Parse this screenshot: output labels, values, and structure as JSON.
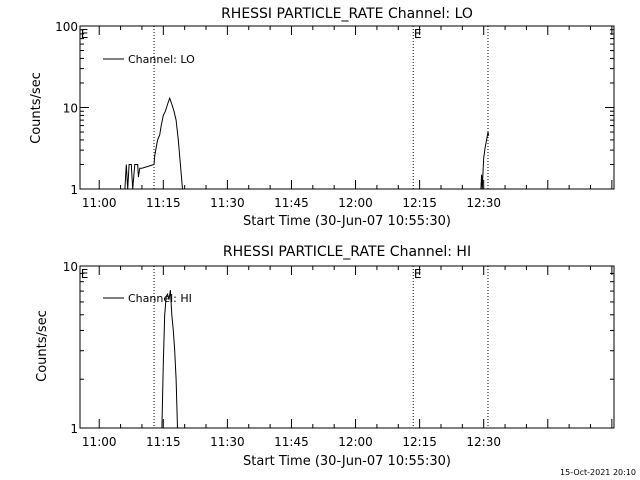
{
  "footer": {
    "timestamp": "15-Oct-2021 20:10"
  },
  "chart_data": [
    {
      "type": "line",
      "title": "RHESSI PARTICLE_RATE Channel: LO",
      "xlabel": "Start Time (30-Jun-07 10:55:30)",
      "ylabel": "Counts/sec",
      "yscale": "log",
      "ylim": [
        1,
        100
      ],
      "xlim": [
        "10:55:30",
        "13:00:30"
      ],
      "x_ticks": [
        "11:00",
        "11:15",
        "11:30",
        "11:45",
        "12:00",
        "12:15",
        "12:30"
      ],
      "y_ticks": [
        {
          "value": 1,
          "label": "1"
        },
        {
          "value": 10,
          "label": "10"
        },
        {
          "value": 100,
          "label": "100"
        }
      ],
      "event_lines": [
        {
          "time": "11:12:50",
          "label": "E"
        },
        {
          "time": "12:13:30",
          "label": ""
        },
        {
          "time": "12:31:00",
          "label": ""
        }
      ],
      "corner_labels": [
        {
          "time": "10:55:40",
          "label": "E"
        },
        {
          "time": "12:13:40",
          "label": "E"
        }
      ],
      "legend": {
        "position": "top-left",
        "entries": [
          "Channel: LO"
        ]
      },
      "series": [
        {
          "name": "Channel: LO",
          "segments": [
            [
              [
                "11:06:00",
                1
              ],
              [
                "11:06:20",
                2
              ],
              [
                "11:06:40",
                1
              ],
              [
                "11:07:00",
                2
              ],
              [
                "11:07:30",
                2
              ],
              [
                "11:07:50",
                1
              ],
              [
                "11:08:20",
                2
              ],
              [
                "11:09:00",
                2
              ],
              [
                "11:09:10",
                1.4
              ],
              [
                "11:09:30",
                1.8
              ],
              [
                "11:10:00",
                1.8
              ],
              [
                "11:12:50",
                2
              ],
              [
                "11:13:00",
                2.6
              ],
              [
                "11:13:40",
                4
              ],
              [
                "11:14:10",
                4.6
              ],
              [
                "11:14:30",
                6
              ],
              [
                "11:15:00",
                8
              ],
              [
                "11:15:30",
                9
              ],
              [
                "11:16:00",
                11
              ],
              [
                "11:16:30",
                13
              ],
              [
                "11:17:00",
                11
              ],
              [
                "11:17:30",
                9
              ],
              [
                "11:18:00",
                7
              ],
              [
                "11:18:30",
                4
              ],
              [
                "11:19:00",
                2
              ],
              [
                "11:19:30",
                1
              ]
            ],
            [
              [
                "12:29:20",
                1
              ],
              [
                "12:29:30",
                1.5
              ],
              [
                "12:29:40",
                1
              ],
              [
                "12:29:50",
                1.6
              ],
              [
                "12:30:00",
                2.4
              ],
              [
                "12:30:20",
                3.2
              ],
              [
                "12:30:40",
                4
              ],
              [
                "12:31:00",
                5
              ],
              [
                "12:31:10",
                4.5
              ]
            ]
          ]
        }
      ]
    },
    {
      "type": "line",
      "title": "RHESSI PARTICLE_RATE Channel: HI",
      "xlabel": "Start Time (30-Jun-07 10:55:30)",
      "ylabel": "Counts/sec",
      "yscale": "log",
      "ylim": [
        1,
        10
      ],
      "xlim": [
        "10:55:30",
        "13:00:30"
      ],
      "x_ticks": [
        "11:00",
        "11:15",
        "11:30",
        "11:45",
        "12:00",
        "12:15",
        "12:30"
      ],
      "y_ticks": [
        {
          "value": 1,
          "label": "1"
        },
        {
          "value": 10,
          "label": "10"
        }
      ],
      "event_lines": [
        {
          "time": "11:12:50",
          "label": ""
        },
        {
          "time": "12:13:30",
          "label": ""
        },
        {
          "time": "12:31:00",
          "label": ""
        }
      ],
      "corner_labels": [
        {
          "time": "10:55:40",
          "label": "E"
        },
        {
          "time": "12:13:40",
          "label": "E"
        }
      ],
      "legend": {
        "position": "top-left",
        "entries": [
          "Channel: HI"
        ]
      },
      "series": [
        {
          "name": "Channel: HI",
          "segments": [
            [
              [
                "11:14:40",
                1
              ],
              [
                "11:15:00",
                2.5
              ],
              [
                "11:15:20",
                5
              ],
              [
                "11:15:40",
                6.5
              ],
              [
                "11:16:00",
                6.7
              ],
              [
                "11:16:20",
                6.2
              ],
              [
                "11:16:40",
                7.1
              ],
              [
                "11:17:00",
                5
              ],
              [
                "11:17:20",
                4
              ],
              [
                "11:17:40",
                3
              ],
              [
                "11:18:00",
                2
              ],
              [
                "11:18:20",
                1
              ]
            ]
          ]
        }
      ]
    }
  ]
}
